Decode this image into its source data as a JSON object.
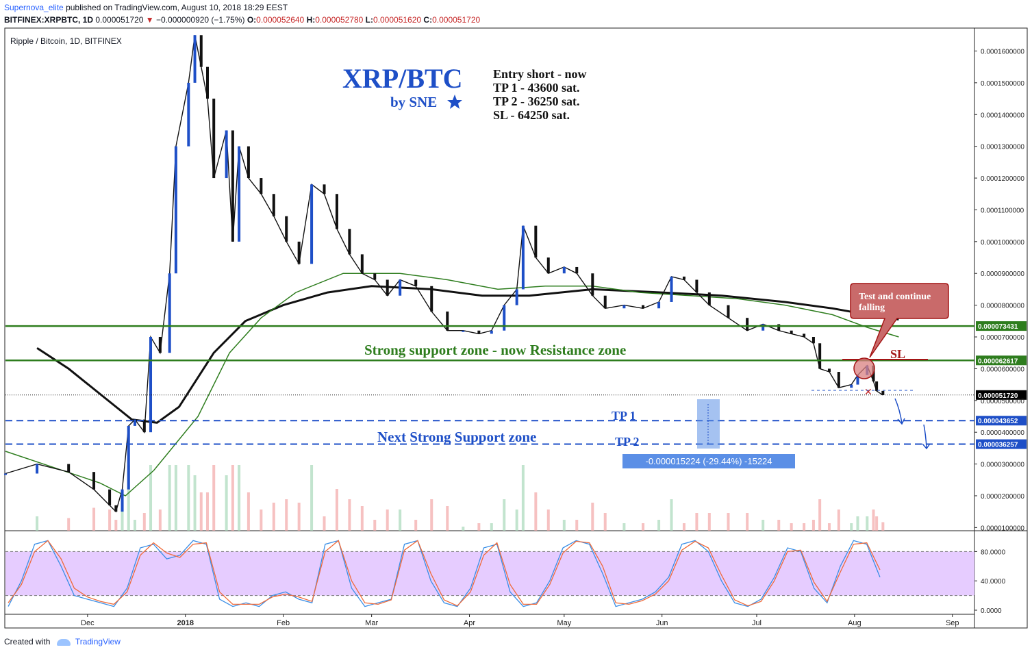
{
  "header": {
    "author": "Supernova_elite",
    "published_text": "published on TradingView.com, August 10, 2018 18:29 EEST",
    "symbol": "BITFINEX:XRPBTC, 1D",
    "last": "0.000051720",
    "change_arrow": "▼",
    "change": "−0.000000920 (−1.75%)",
    "o_label": "O:",
    "o": "0.000052640",
    "h_label": "H:",
    "h": "0.000052780",
    "l_label": "L:",
    "l": "0.000051620",
    "c_label": "C:",
    "c": "0.000051720"
  },
  "footer": {
    "created_with": "Created with",
    "brand": "TradingView"
  },
  "colors": {
    "up": "#1e4fc7",
    "down": "#111111",
    "ma200": "#111111",
    "ma100": "#2e7d1e",
    "ribbon": "#2962ff",
    "zone": "#2e7d1e",
    "tp": "#1e4fc7",
    "stoch_bg": "#e6ccff",
    "stoch_k": "#3a8ee6",
    "stoch_d": "#ef6a3a",
    "sl": "#a31515"
  },
  "chart_data": {
    "type": "line",
    "title": "Ripple / Bitcoin, 1D, BITFINEX",
    "ylim": [
      9e-06,
      0.000167
    ],
    "xlim": [
      "2017-11-05",
      "2018-09-08"
    ],
    "x_ticks": [
      {
        "label": "Dec",
        "date": "2017-12-01"
      },
      {
        "label": "2018",
        "date": "2018-01-01"
      },
      {
        "label": "Feb",
        "date": "2018-02-01"
      },
      {
        "label": "Mar",
        "date": "2018-03-01"
      },
      {
        "label": "Apr",
        "date": "2018-04-01"
      },
      {
        "label": "May",
        "date": "2018-05-01"
      },
      {
        "label": "Jun",
        "date": "2018-06-01"
      },
      {
        "label": "Jul",
        "date": "2018-07-01"
      },
      {
        "label": "Aug",
        "date": "2018-08-01"
      },
      {
        "label": "Sep",
        "date": "2018-09-01"
      }
    ],
    "y_ticks": [
      "0.0001600000",
      "0.0001500000",
      "0.0001400000",
      "0.0001300000",
      "0.0001200000",
      "0.0001100000",
      "0.0001000000",
      "0.0000900000",
      "0.0000800000",
      "0.0000700000",
      "0.0000600000",
      "0.0000500000",
      "0.0000400000",
      "0.0000300000",
      "0.0000200000",
      "0.0000100000"
    ],
    "y_tick_values": [
      0.00016,
      0.00015,
      0.00014,
      0.00013,
      0.00012,
      0.00011,
      0.0001,
      9e-05,
      8e-05,
      7e-05,
      6e-05,
      5e-05,
      4e-05,
      3e-05,
      2e-05,
      1e-05
    ],
    "price_series": [
      {
        "name": "XRPBTC close (approx.)",
        "points": [
          [
            "2017-11-05",
            2.7e-05
          ],
          [
            "2017-11-15",
            3e-05
          ],
          [
            "2017-11-25",
            2.75e-05
          ],
          [
            "2017-12-03",
            2.2e-05
          ],
          [
            "2017-12-08",
            1.7e-05
          ],
          [
            "2017-12-10",
            1.5e-05
          ],
          [
            "2017-12-12",
            2.2e-05
          ],
          [
            "2017-12-14",
            4.2e-05
          ],
          [
            "2017-12-16",
            4.4e-05
          ],
          [
            "2017-12-19",
            4e-05
          ],
          [
            "2017-12-21",
            7e-05
          ],
          [
            "2017-12-24",
            6.5e-05
          ],
          [
            "2017-12-27",
            9e-05
          ],
          [
            "2017-12-29",
            0.00013
          ],
          [
            "2018-01-02",
            0.00015
          ],
          [
            "2018-01-04",
            0.000165
          ],
          [
            "2018-01-06",
            0.000155
          ],
          [
            "2018-01-08",
            0.000145
          ],
          [
            "2018-01-10",
            0.00012
          ],
          [
            "2018-01-14",
            0.000135
          ],
          [
            "2018-01-16",
            0.0001
          ],
          [
            "2018-01-18",
            0.00013
          ],
          [
            "2018-01-21",
            0.00012
          ],
          [
            "2018-01-25",
            0.000115
          ],
          [
            "2018-01-29",
            0.000108
          ],
          [
            "2018-02-02",
            0.0001
          ],
          [
            "2018-02-06",
            9.3e-05
          ],
          [
            "2018-02-10",
            0.000118
          ],
          [
            "2018-02-14",
            0.000115
          ],
          [
            "2018-02-18",
            0.000104
          ],
          [
            "2018-02-22",
            9.6e-05
          ],
          [
            "2018-02-26",
            9e-05
          ],
          [
            "2018-03-02",
            8.8e-05
          ],
          [
            "2018-03-06",
            8.3e-05
          ],
          [
            "2018-03-10",
            8.8e-05
          ],
          [
            "2018-03-15",
            8.6e-05
          ],
          [
            "2018-03-20",
            7.8e-05
          ],
          [
            "2018-03-25",
            7.2e-05
          ],
          [
            "2018-03-30",
            7.2e-05
          ],
          [
            "2018-04-04",
            7.1e-05
          ],
          [
            "2018-04-08",
            7.2e-05
          ],
          [
            "2018-04-12",
            8e-05
          ],
          [
            "2018-04-16",
            8.5e-05
          ],
          [
            "2018-04-18",
            0.000105
          ],
          [
            "2018-04-22",
            9.5e-05
          ],
          [
            "2018-04-26",
            9e-05
          ],
          [
            "2018-05-01",
            9.2e-05
          ],
          [
            "2018-05-05",
            9e-05
          ],
          [
            "2018-05-10",
            8.3e-05
          ],
          [
            "2018-05-14",
            7.9e-05
          ],
          [
            "2018-05-20",
            8e-05
          ],
          [
            "2018-05-26",
            7.9e-05
          ],
          [
            "2018-05-31",
            8.1e-05
          ],
          [
            "2018-06-04",
            8.9e-05
          ],
          [
            "2018-06-08",
            8.8e-05
          ],
          [
            "2018-06-12",
            8.4e-05
          ],
          [
            "2018-06-16",
            8e-05
          ],
          [
            "2018-06-22",
            7.6e-05
          ],
          [
            "2018-06-28",
            7.2e-05
          ],
          [
            "2018-07-03",
            7.4e-05
          ],
          [
            "2018-07-08",
            7.2e-05
          ],
          [
            "2018-07-12",
            7.1e-05
          ],
          [
            "2018-07-16",
            7e-05
          ],
          [
            "2018-07-19",
            6.8e-05
          ],
          [
            "2018-07-21",
            6e-05
          ],
          [
            "2018-07-24",
            5.9e-05
          ],
          [
            "2018-07-27",
            5.4e-05
          ],
          [
            "2018-07-31",
            5.5e-05
          ],
          [
            "2018-08-02",
            5.8e-05
          ],
          [
            "2018-08-05",
            6.1e-05
          ],
          [
            "2018-08-07",
            5.6e-05
          ],
          [
            "2018-08-08",
            5.3e-05
          ],
          [
            "2018-08-10",
            5.17e-05
          ]
        ]
      }
    ],
    "moving_averages": [
      {
        "name": "MA 200",
        "points": [
          [
            "2017-11-15",
            6.65e-05
          ],
          [
            "2017-11-25",
            6e-05
          ],
          [
            "2017-12-05",
            5.2e-05
          ],
          [
            "2017-12-15",
            4.4e-05
          ],
          [
            "2017-12-23",
            4.3e-05
          ],
          [
            "2017-12-30",
            4.8e-05
          ],
          [
            "2018-01-10",
            6.5e-05
          ],
          [
            "2018-01-20",
            7.5e-05
          ],
          [
            "2018-02-01",
            8e-05
          ],
          [
            "2018-02-15",
            8.4e-05
          ],
          [
            "2018-03-01",
            8.6e-05
          ],
          [
            "2018-03-20",
            8.5e-05
          ],
          [
            "2018-04-05",
            8.3e-05
          ],
          [
            "2018-04-20",
            8.3e-05
          ],
          [
            "2018-05-10",
            8.5e-05
          ],
          [
            "2018-06-01",
            8.4e-05
          ],
          [
            "2018-06-20",
            8.3e-05
          ],
          [
            "2018-07-10",
            8.1e-05
          ],
          [
            "2018-07-25",
            7.9e-05
          ],
          [
            "2018-08-08",
            7.65e-05
          ],
          [
            "2018-08-15",
            7.55e-05
          ]
        ]
      },
      {
        "name": "MA 100",
        "points": [
          [
            "2017-11-05",
            3.4e-05
          ],
          [
            "2017-11-20",
            2.9e-05
          ],
          [
            "2017-12-05",
            2.4e-05
          ],
          [
            "2017-12-13",
            2e-05
          ],
          [
            "2017-12-22",
            2.8e-05
          ],
          [
            "2018-01-05",
            4.5e-05
          ],
          [
            "2018-01-15",
            6.5e-05
          ],
          [
            "2018-01-25",
            7.6e-05
          ],
          [
            "2018-02-05",
            8.4e-05
          ],
          [
            "2018-02-20",
            9e-05
          ],
          [
            "2018-03-10",
            9e-05
          ],
          [
            "2018-03-25",
            8.8e-05
          ],
          [
            "2018-04-10",
            8.5e-05
          ],
          [
            "2018-04-25",
            8.6e-05
          ],
          [
            "2018-05-10",
            8.6e-05
          ],
          [
            "2018-05-25",
            8.4e-05
          ],
          [
            "2018-06-10",
            8.3e-05
          ],
          [
            "2018-06-25",
            8.2e-05
          ],
          [
            "2018-07-10",
            8e-05
          ],
          [
            "2018-07-25",
            7.7e-05
          ],
          [
            "2018-08-05",
            7.3e-05
          ],
          [
            "2018-08-15",
            7e-05
          ]
        ]
      }
    ],
    "volume_max": 1.8e-05,
    "zones": [
      {
        "label": "0.000073431",
        "value": 7.3431e-05,
        "color": "#2e7d1e"
      },
      {
        "label": "0.000062617",
        "value": 6.2617e-05,
        "color": "#2e7d1e"
      }
    ],
    "targets": [
      {
        "label": "0.000043652",
        "value": 4.3652e-05,
        "color": "#1e4fc7"
      },
      {
        "label": "0.000036257",
        "value": 3.6257e-05,
        "color": "#1e4fc7"
      }
    ],
    "last_price": {
      "label": "0.000051720",
      "value": 5.172e-05
    },
    "annotations": {
      "pair_title": "XRP/BTC",
      "by_line": "by SNE",
      "plan": [
        "Entry short - now",
        "TP 1 - 43600 sat.",
        "TP 2 - 36250 sat.",
        "SL - 64250 sat."
      ],
      "resistance_text": "Strong support zone - now Resistance zone",
      "support_text": "Next Strong Support zone",
      "tp1": "TP 1",
      "tp2": "TP 2",
      "sl": "SL",
      "callout": "Test and continue falling",
      "measure": "-0.000015224 (-29.44%) -15224"
    },
    "stoch": {
      "y_ticks": [
        "80.0000",
        "40.0000",
        "0.0000"
      ],
      "y_tick_values": [
        80,
        40,
        0
      ],
      "band": [
        20,
        80
      ],
      "k": [
        5,
        40,
        90,
        95,
        60,
        20,
        15,
        10,
        5,
        30,
        85,
        90,
        70,
        75,
        95,
        90,
        15,
        5,
        10,
        5,
        20,
        25,
        15,
        10,
        90,
        95,
        30,
        5,
        10,
        15,
        90,
        95,
        40,
        10,
        5,
        30,
        85,
        90,
        25,
        5,
        10,
        40,
        85,
        95,
        90,
        50,
        5,
        10,
        15,
        25,
        45,
        90,
        95,
        80,
        40,
        10,
        5,
        15,
        45,
        85,
        80,
        30,
        10,
        60,
        95,
        90,
        45
      ],
      "d": [
        10,
        35,
        80,
        95,
        70,
        30,
        18,
        12,
        8,
        25,
        75,
        92,
        78,
        72,
        90,
        92,
        25,
        8,
        8,
        8,
        18,
        22,
        18,
        12,
        80,
        95,
        40,
        10,
        8,
        14,
        82,
        95,
        50,
        14,
        6,
        25,
        75,
        92,
        35,
        8,
        8,
        35,
        78,
        94,
        92,
        60,
        10,
        8,
        13,
        22,
        40,
        82,
        94,
        85,
        48,
        14,
        6,
        12,
        40,
        80,
        82,
        38,
        12,
        52,
        90,
        92,
        55
      ]
    }
  }
}
